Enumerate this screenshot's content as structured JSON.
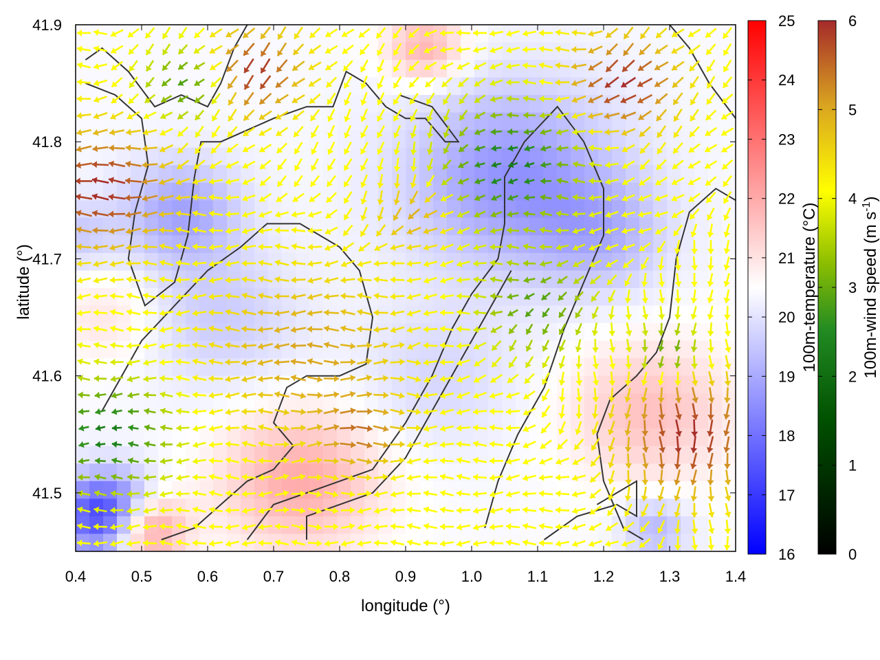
{
  "chart_data": {
    "type": "heatmap",
    "subtype": "vector-field with temperature shading and contour lines",
    "title": "",
    "xlabel": "longitude (°)",
    "ylabel": "latitude (°)",
    "xlim": [
      0.4,
      1.4
    ],
    "ylim": [
      41.45,
      41.9
    ],
    "xticks": [
      "0.4",
      "0.5",
      "0.6",
      "0.7",
      "0.8",
      "0.9",
      "1.0",
      "1.1",
      "1.2",
      "1.3",
      "1.4"
    ],
    "yticks": [
      "41.5",
      "41.6",
      "41.7",
      "41.8",
      "41.9"
    ],
    "grid": false,
    "temperature_colorbar": {
      "label": "100m-temperature (°C)",
      "range": [
        16,
        25
      ],
      "ticks": [
        "16",
        "17",
        "18",
        "19",
        "20",
        "21",
        "22",
        "23",
        "24",
        "25"
      ],
      "colors": [
        "#0000ff",
        "#ffffff",
        "#ff0000"
      ]
    },
    "wind_colorbar": {
      "label_main": "100m-wind speed (m s",
      "label_sup": "-1",
      "label_close": ")",
      "range": [
        0,
        6
      ],
      "ticks": [
        "0",
        "1",
        "2",
        "3",
        "4",
        "5",
        "6"
      ],
      "colors": [
        "#000000",
        "#005000",
        "#228b22",
        "#90c000",
        "#ffff00",
        "#daa520",
        "#a52a2a"
      ]
    },
    "temperature_field": {
      "base": 20.4,
      "blobs": [
        {
          "lon": 0.45,
          "lat": 41.48,
          "r": 0.07,
          "t": -4.0
        },
        {
          "lon": 0.5,
          "lat": 41.47,
          "r": 0.06,
          "t": 3.0
        },
        {
          "lon": 0.74,
          "lat": 41.51,
          "r": 0.12,
          "t": 1.6
        },
        {
          "lon": 0.56,
          "lat": 41.74,
          "r": 0.09,
          "t": -1.5
        },
        {
          "lon": 0.62,
          "lat": 41.65,
          "r": 0.12,
          "t": -0.8
        },
        {
          "lon": 1.06,
          "lat": 41.77,
          "r": 0.16,
          "t": -1.8
        },
        {
          "lon": 1.2,
          "lat": 41.72,
          "r": 0.1,
          "t": -1.0
        },
        {
          "lon": 0.93,
          "lat": 41.88,
          "r": 0.06,
          "t": 1.5
        },
        {
          "lon": 1.27,
          "lat": 41.57,
          "r": 0.12,
          "t": 1.2
        },
        {
          "lon": 0.45,
          "lat": 41.65,
          "r": 0.08,
          "t": 0.6
        },
        {
          "lon": 0.95,
          "lat": 41.6,
          "r": 0.12,
          "t": -0.6
        },
        {
          "lon": 0.4,
          "lat": 41.72,
          "r": 0.06,
          "t": -0.8
        },
        {
          "lon": 1.28,
          "lat": 41.47,
          "r": 0.05,
          "t": -1.2
        }
      ]
    },
    "wind_speed_field": {
      "base": 4.0,
      "blobs": [
        {
          "lon": 0.45,
          "lat": 41.55,
          "r": 0.09,
          "s": -2.3
        },
        {
          "lon": 1.06,
          "lat": 41.78,
          "r": 0.1,
          "s": -2.3
        },
        {
          "lon": 0.57,
          "lat": 41.85,
          "r": 0.06,
          "s": -1.8
        },
        {
          "lon": 1.1,
          "lat": 41.66,
          "r": 0.08,
          "s": -1.6
        },
        {
          "lon": 1.3,
          "lat": 41.62,
          "r": 0.05,
          "s": -1.6
        },
        {
          "lon": 0.44,
          "lat": 41.76,
          "r": 0.1,
          "s": 2.0
        },
        {
          "lon": 0.67,
          "lat": 41.86,
          "r": 0.07,
          "s": 2.0
        },
        {
          "lon": 1.23,
          "lat": 41.85,
          "r": 0.08,
          "s": 2.0
        },
        {
          "lon": 1.33,
          "lat": 41.55,
          "r": 0.1,
          "s": 2.0
        },
        {
          "lon": 0.75,
          "lat": 41.62,
          "r": 0.14,
          "s": 1.0
        },
        {
          "lon": 0.83,
          "lat": 41.55,
          "r": 0.06,
          "s": 1.2
        },
        {
          "lon": 0.92,
          "lat": 41.74,
          "r": 0.06,
          "s": 1.0
        }
      ]
    },
    "wind_direction_regions": [
      {
        "lon": 0.55,
        "lat": 41.6,
        "r": 0.2,
        "dir": "west"
      },
      {
        "lon": 0.8,
        "lat": 41.55,
        "r": 0.12,
        "dir": "east"
      },
      {
        "lon": 0.92,
        "lat": 41.78,
        "r": 0.1,
        "dir": "south"
      },
      {
        "lon": 1.05,
        "lat": 41.75,
        "r": 0.15,
        "dir": "west"
      },
      {
        "lon": 1.28,
        "lat": 41.6,
        "r": 0.15,
        "dir": "south"
      },
      {
        "lon": 1.35,
        "lat": 41.82,
        "r": 0.1,
        "dir": "southwest"
      },
      {
        "lon": 0.7,
        "lat": 41.84,
        "r": 0.1,
        "dir": "southwest"
      },
      {
        "lon": 1.0,
        "lat": 41.5,
        "r": 0.14,
        "dir": "west"
      }
    ],
    "contour_lines": [
      [
        [
          0.415,
          41.87
        ],
        [
          0.44,
          41.88
        ],
        [
          0.48,
          41.86
        ],
        [
          0.52,
          41.83
        ],
        [
          0.56,
          41.84
        ],
        [
          0.6,
          41.83
        ],
        [
          0.62,
          41.85
        ],
        [
          0.64,
          41.88
        ],
        [
          0.66,
          41.9
        ]
      ],
      [
        [
          0.415,
          41.85
        ],
        [
          0.46,
          41.84
        ],
        [
          0.5,
          41.82
        ],
        [
          0.51,
          41.78
        ],
        [
          0.49,
          41.74
        ],
        [
          0.48,
          41.7
        ],
        [
          0.505,
          41.66
        ],
        [
          0.55,
          41.68
        ],
        [
          0.57,
          41.72
        ],
        [
          0.58,
          41.77
        ],
        [
          0.59,
          41.8
        ],
        [
          0.62,
          41.8
        ],
        [
          0.66,
          41.81
        ],
        [
          0.7,
          41.82
        ],
        [
          0.75,
          41.83
        ],
        [
          0.79,
          41.83
        ],
        [
          0.81,
          41.86
        ],
        [
          0.84,
          41.85
        ],
        [
          0.87,
          41.83
        ],
        [
          0.9,
          41.82
        ],
        [
          0.93,
          41.82
        ],
        [
          0.96,
          41.8
        ],
        [
          0.98,
          41.8
        ],
        [
          0.94,
          41.83
        ],
        [
          0.89,
          41.84
        ]
      ],
      [
        [
          0.44,
          41.57
        ],
        [
          0.47,
          41.6
        ],
        [
          0.5,
          41.63
        ],
        [
          0.55,
          41.66
        ],
        [
          0.6,
          41.69
        ],
        [
          0.65,
          41.71
        ],
        [
          0.69,
          41.73
        ],
        [
          0.74,
          41.73
        ],
        [
          0.77,
          41.72
        ],
        [
          0.8,
          41.71
        ],
        [
          0.83,
          41.69
        ],
        [
          0.85,
          41.65
        ],
        [
          0.84,
          41.61
        ],
        [
          0.8,
          41.6
        ],
        [
          0.75,
          41.6
        ],
        [
          0.72,
          41.59
        ],
        [
          0.7,
          41.56
        ],
        [
          0.73,
          41.54
        ],
        [
          0.7,
          41.52
        ],
        [
          0.66,
          41.51
        ],
        [
          0.62,
          41.49
        ],
        [
          0.58,
          41.47
        ],
        [
          0.53,
          41.46
        ]
      ],
      [
        [
          0.66,
          41.46
        ],
        [
          0.7,
          41.49
        ],
        [
          0.75,
          41.5
        ],
        [
          0.8,
          41.51
        ],
        [
          0.85,
          41.52
        ],
        [
          0.9,
          41.56
        ],
        [
          0.94,
          41.6
        ],
        [
          0.97,
          41.64
        ],
        [
          1.0,
          41.67
        ],
        [
          1.04,
          41.7
        ],
        [
          1.05,
          41.73
        ],
        [
          1.05,
          41.77
        ],
        [
          1.08,
          41.8
        ],
        [
          1.13,
          41.83
        ],
        [
          1.17,
          41.8
        ],
        [
          1.2,
          41.76
        ],
        [
          1.2,
          41.72
        ],
        [
          1.17,
          41.68
        ],
        [
          1.14,
          41.64
        ],
        [
          1.11,
          41.59
        ],
        [
          1.07,
          41.55
        ],
        [
          1.04,
          41.51
        ],
        [
          1.02,
          41.47
        ]
      ],
      [
        [
          0.75,
          41.46
        ],
        [
          0.75,
          41.48
        ],
        [
          0.8,
          41.49
        ],
        [
          0.85,
          41.5
        ],
        [
          0.9,
          41.53
        ],
        [
          0.93,
          41.56
        ],
        [
          0.98,
          41.61
        ],
        [
          1.02,
          41.65
        ],
        [
          1.06,
          41.69
        ]
      ],
      [
        [
          1.11,
          41.46
        ],
        [
          1.16,
          41.48
        ],
        [
          1.22,
          41.49
        ],
        [
          1.25,
          41.48
        ],
        [
          1.25,
          41.51
        ],
        [
          1.22,
          41.5
        ],
        [
          1.19,
          41.49
        ]
      ],
      [
        [
          1.3,
          41.9
        ],
        [
          1.33,
          41.88
        ],
        [
          1.36,
          41.85
        ],
        [
          1.4,
          41.82
        ]
      ],
      [
        [
          1.4,
          41.75
        ],
        [
          1.37,
          41.76
        ],
        [
          1.33,
          41.74
        ],
        [
          1.31,
          41.7
        ],
        [
          1.3,
          41.65
        ],
        [
          1.28,
          41.62
        ],
        [
          1.25,
          41.6
        ],
        [
          1.21,
          41.58
        ],
        [
          1.19,
          41.55
        ],
        [
          1.2,
          41.51
        ],
        [
          1.23,
          41.47
        ],
        [
          1.26,
          41.46
        ]
      ]
    ]
  }
}
